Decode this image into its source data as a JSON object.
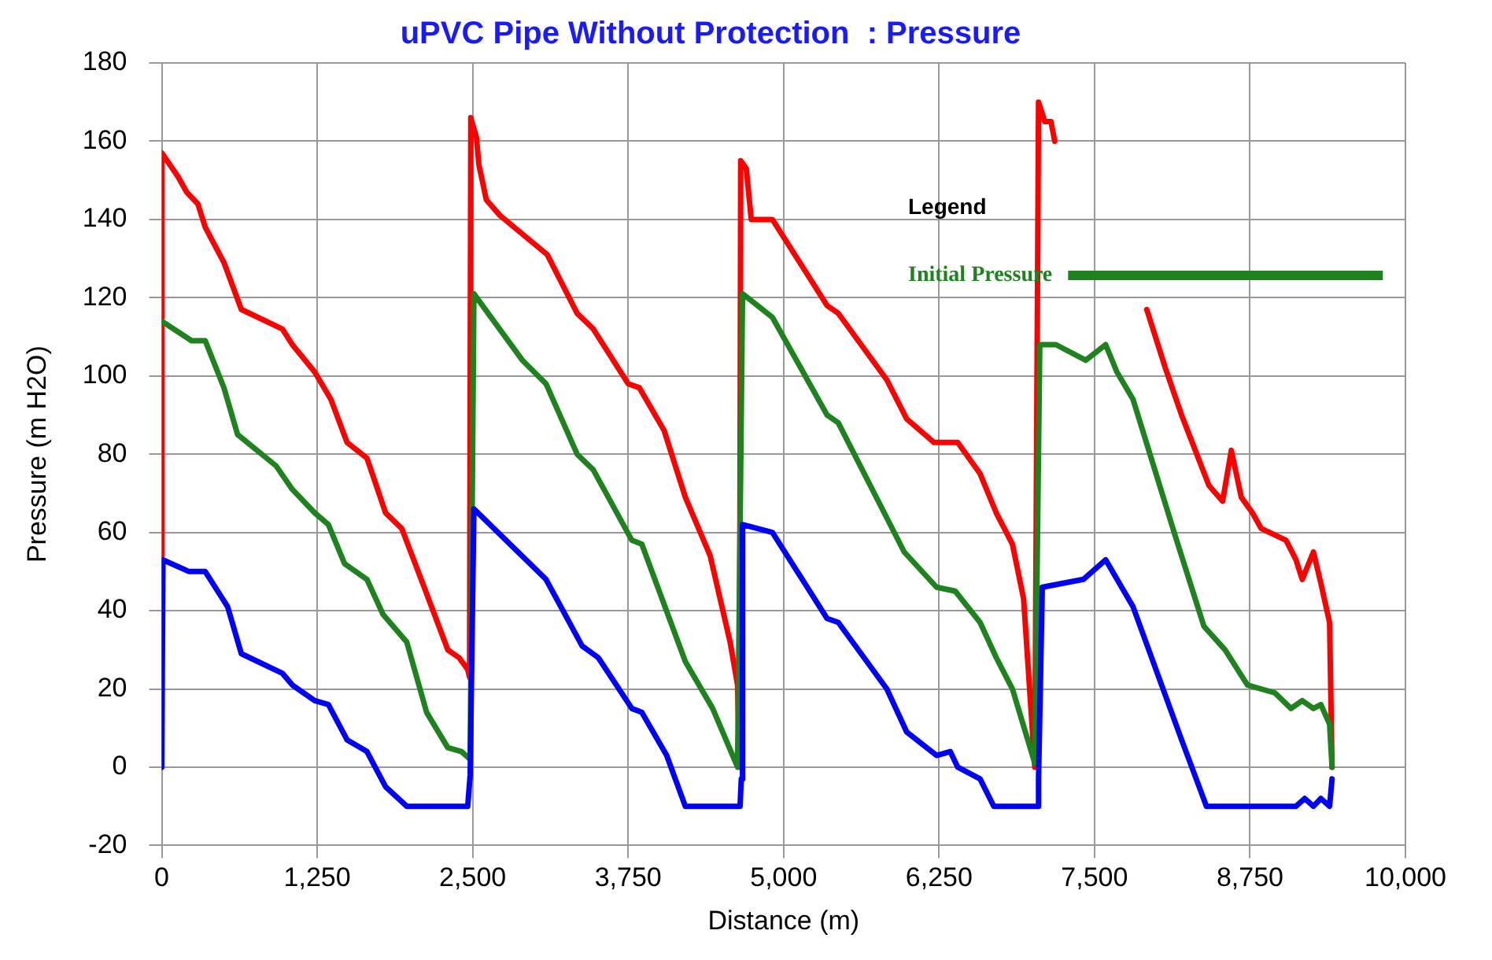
{
  "chart_data": {
    "type": "line",
    "title": "uPVC Pipe Without Protection  : Pressure",
    "xlabel": "Distance (m)",
    "ylabel": "Pressure (m H2O)",
    "legend_title": "Legend",
    "legend": "top right",
    "grid": true,
    "marker": "none",
    "line_style": "solid",
    "xlim": [
      0,
      10000
    ],
    "xticks": [
      0,
      {
        "value": 1250,
        "label": "1,250"
      },
      {
        "value": 2500,
        "label": "2,500"
      },
      {
        "value": 3750,
        "label": "3,750"
      },
      {
        "value": 5000,
        "label": "5,000"
      },
      {
        "value": 6250,
        "label": "6,250"
      },
      {
        "value": 7500,
        "label": "7,500"
      },
      {
        "value": 8750,
        "label": "8,750"
      },
      {
        "value": 10000,
        "label": "10,000"
      }
    ],
    "ylim": [
      -20,
      180
    ],
    "yticks": [
      -20,
      0,
      20,
      40,
      60,
      80,
      100,
      120,
      140,
      160,
      180
    ],
    "series": [
      {
        "color": "#0000ff",
        "x": [
          0,
          10,
          220,
          350,
          530,
          640,
          970,
          1050,
          1230,
          1340,
          1490,
          1650,
          1800,
          1970,
          2460,
          2480,
          2510,
          3090,
          3380,
          3510,
          3780,
          3860,
          4060,
          4210,
          4650,
          4660,
          4670,
          4910,
          5350,
          5440,
          5830,
          5990,
          6230,
          6340,
          6400,
          6580,
          6690,
          7040,
          7050,
          7080,
          7410,
          7590,
          7700,
          7810,
          8200,
          8400,
          9120,
          9190,
          9260,
          9320,
          9390,
          9410
        ],
        "values": [
          0,
          53,
          50,
          50,
          41,
          29,
          24,
          21,
          17,
          16,
          7,
          4,
          -5,
          -10,
          -10,
          -2,
          66,
          48,
          31,
          28,
          15,
          14,
          3,
          -10,
          -10,
          -3,
          62,
          60,
          38,
          37,
          20,
          9,
          3,
          4,
          0,
          -3,
          -10,
          -10,
          -3,
          46,
          48,
          53,
          47,
          41,
          7,
          -10,
          -10,
          -8,
          -10,
          -8,
          -10,
          -3
        ]
      },
      {
        "name": "Initial Pressure",
        "color": "#1e821e",
        "x": [
          0,
          240,
          350,
          500,
          610,
          920,
          1050,
          1230,
          1340,
          1470,
          1650,
          1780,
          1970,
          2130,
          2300,
          2410,
          2480,
          2510,
          2900,
          3090,
          3340,
          3470,
          3780,
          3860,
          4210,
          4430,
          4630,
          4670,
          4910,
          5350,
          5440,
          5970,
          6230,
          6380,
          6580,
          6710,
          6840,
          7020,
          7060,
          7190,
          7430,
          7590,
          7680,
          7810,
          8160,
          8380,
          8550,
          8730,
          8950,
          9080,
          9170,
          9260,
          9320,
          9390,
          9410
        ],
        "values": [
          114,
          109,
          109,
          97,
          85,
          77,
          71,
          65,
          62,
          52,
          48,
          39,
          32,
          14,
          5,
          4,
          2,
          121,
          104,
          98,
          80,
          76,
          58,
          57,
          27,
          15,
          0,
          121,
          115,
          90,
          88,
          55,
          46,
          45,
          37,
          28,
          20,
          1,
          108,
          108,
          104,
          108,
          101,
          94,
          58,
          36,
          30,
          21,
          19,
          15,
          17,
          15,
          16,
          11,
          0
        ]
      },
      {
        "color": "#ff0000",
        "x": [
          0,
          0,
          130,
          200,
          290,
          350,
          500,
          640,
          970,
          1050,
          1230,
          1360,
          1490,
          1650,
          1800,
          1930,
          2110,
          2300,
          2390,
          2460,
          2475,
          2485,
          2530,
          2550,
          2610,
          2720,
          3100,
          3340,
          3470,
          3750,
          3840,
          4040,
          4210,
          4410,
          4570,
          4630,
          4645,
          4655,
          4700,
          4740,
          4910,
          5350,
          5440,
          5830,
          5990,
          6210,
          6400,
          6580,
          6710,
          6840,
          6930,
          7020,
          7050,
          7100,
          7150,
          7180,
          7200,
          7920,
          8070,
          8200,
          8420,
          8530,
          8600,
          8680,
          8770,
          8840,
          9040,
          9120,
          9170,
          9260,
          9320,
          9390,
          9410
        ],
        "values": [
          0,
          157,
          151,
          147,
          144,
          138,
          129,
          117,
          112,
          108,
          101,
          94,
          83,
          79,
          65,
          61,
          46,
          30,
          28,
          25,
          23,
          166,
          161,
          154,
          145,
          141,
          131,
          116,
          112,
          98,
          97,
          86,
          69,
          54,
          32,
          21,
          0,
          155,
          153,
          140,
          140,
          118,
          116,
          99,
          89,
          83,
          83,
          75,
          65,
          57,
          43,
          0,
          170,
          165,
          165,
          160,
          null,
          117,
          102,
          90,
          72,
          68,
          81,
          69,
          65,
          61,
          58,
          53,
          48,
          55,
          47,
          37,
          0
        ]
      }
    ]
  }
}
